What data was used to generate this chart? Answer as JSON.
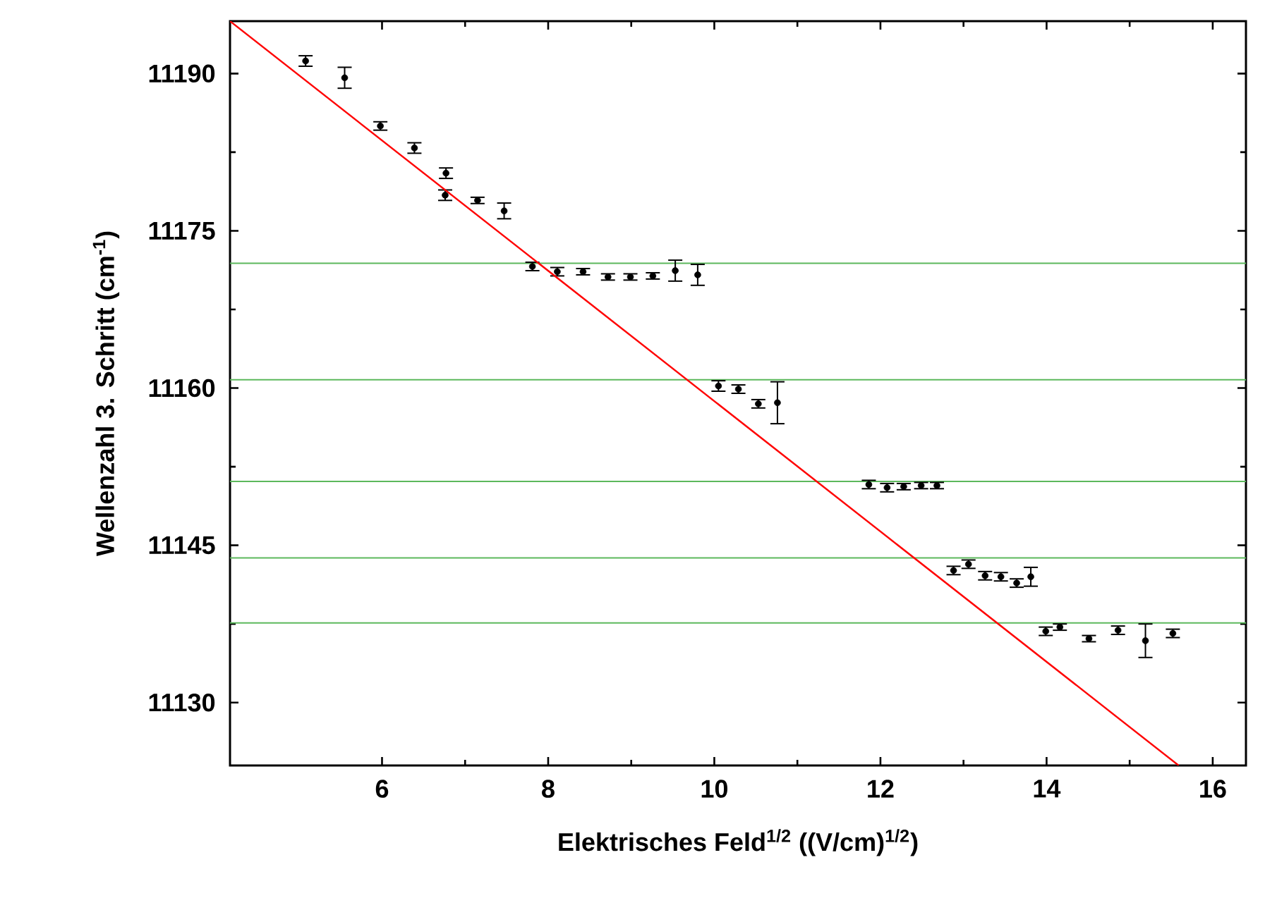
{
  "chart_data": {
    "type": "scatter",
    "xlabel": "Elektrisches Feld$^{1/2}$ ((V/cm)$^{1/2}$)",
    "ylabel": "Wellenzahl 3. Schritt (cm$^{-1}$)",
    "xlim": [
      4.17,
      16.4
    ],
    "ylim": [
      11124,
      11195
    ],
    "xticks": [
      6,
      8,
      10,
      12,
      14,
      16
    ],
    "yticks": [
      11130,
      11145,
      11160,
      11175,
      11190
    ],
    "grid": false,
    "series": [
      {
        "color": "#000000",
        "marker": "circle",
        "x": [
          5.08,
          5.55,
          5.98,
          6.39,
          6.77,
          6.76,
          7.15,
          7.47,
          7.81,
          8.11,
          8.42,
          8.72,
          8.99,
          9.26,
          9.53,
          9.8,
          10.05,
          10.29,
          10.53,
          10.76,
          11.86,
          12.08,
          12.28,
          12.49,
          12.68,
          12.88,
          13.06,
          13.26,
          13.45,
          13.64,
          13.81,
          13.99,
          14.16,
          14.51,
          14.86,
          15.19,
          15.52
        ],
        "values": [
          11191.2,
          11189.6,
          11185.0,
          11182.9,
          11180.5,
          11178.4,
          11177.9,
          11176.9,
          11171.6,
          11171.1,
          11171.1,
          11170.6,
          11170.6,
          11170.7,
          11171.2,
          11170.8,
          11160.2,
          11159.9,
          11158.5,
          11158.6,
          11150.8,
          11150.5,
          11150.6,
          11150.7,
          11150.7,
          11142.6,
          11143.2,
          11142.1,
          11142.0,
          11141.4,
          11142.0,
          11136.8,
          11137.2,
          11136.1,
          11136.9,
          11135.9,
          11136.6
        ],
        "errors": [
          0.5,
          1.0,
          0.4,
          0.5,
          0.5,
          0.5,
          0.3,
          0.75,
          0.4,
          0.4,
          0.3,
          0.3,
          0.3,
          0.3,
          1.0,
          1.0,
          0.5,
          0.4,
          0.4,
          2.0,
          0.4,
          0.4,
          0.3,
          0.3,
          0.3,
          0.4,
          0.4,
          0.4,
          0.4,
          0.4,
          0.9,
          0.4,
          0.3,
          0.3,
          0.4,
          1.6,
          0.4
        ]
      },
      {
        "type": "line",
        "color": "#ff0000",
        "x": [
          4.17,
          15.59
        ],
        "values": [
          11195,
          11124
        ]
      }
    ],
    "ref_lines": [
      {
        "axis": "y",
        "value": 11171.9,
        "color": "#5cb85c"
      },
      {
        "axis": "y",
        "value": 11160.8,
        "color": "#5cb85c"
      },
      {
        "axis": "y",
        "value": 11151.1,
        "color": "#5cb85c"
      },
      {
        "axis": "y",
        "value": 11143.8,
        "color": "#5cb85c"
      },
      {
        "axis": "y",
        "value": 11137.6,
        "color": "#5cb85c"
      }
    ]
  }
}
